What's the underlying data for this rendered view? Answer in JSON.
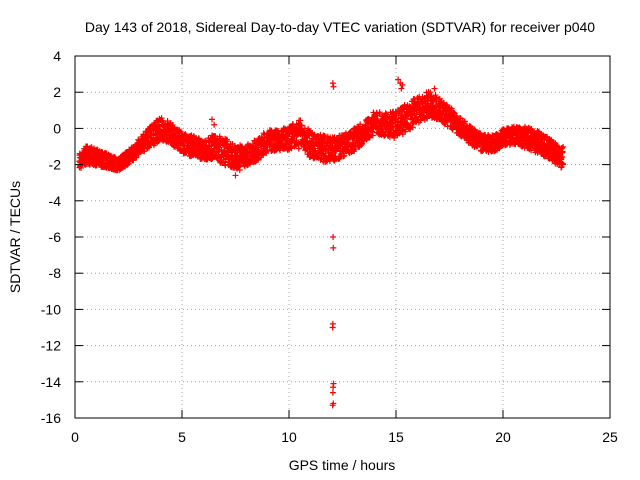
{
  "colors": {
    "series": "#ff0000",
    "axis": "#000000",
    "grid": "#a0a0a0",
    "background": "#ffffff"
  },
  "chart_data": {
    "type": "scatter",
    "title": "Day 143 of 2018, Sidereal Day-to-day VTEC variation (SDTVAR) for receiver p040",
    "xlabel": "GPS time / hours",
    "ylabel": "SDTVAR / TECUs",
    "xlim": [
      0,
      25
    ],
    "ylim": [
      -16,
      4
    ],
    "grid": true,
    "marker": "+",
    "x_ticks": [
      {
        "value": 0,
        "label": "0"
      },
      {
        "value": 5,
        "label": "5"
      },
      {
        "value": 10,
        "label": "10"
      },
      {
        "value": 15,
        "label": "15"
      },
      {
        "value": 20,
        "label": "20"
      },
      {
        "value": 25,
        "label": "25"
      }
    ],
    "y_ticks": [
      {
        "value": 4,
        "label": "4"
      },
      {
        "value": 2,
        "label": "2"
      },
      {
        "value": 0,
        "label": "0"
      },
      {
        "value": -2,
        "label": "-2"
      },
      {
        "value": -4,
        "label": "-4"
      },
      {
        "value": -6,
        "label": "-6"
      },
      {
        "value": -8,
        "label": "-8"
      },
      {
        "value": -10,
        "label": "-10"
      },
      {
        "value": -12,
        "label": "-12"
      },
      {
        "value": -14,
        "label": "-14"
      },
      {
        "value": -16,
        "label": "-16"
      }
    ],
    "series": [
      {
        "name": "SDTVAR",
        "band_center": {
          "x": [
            0.2,
            0.5,
            1.0,
            1.5,
            2.0,
            2.5,
            3.0,
            3.5,
            4.0,
            4.5,
            5.0,
            5.5,
            6.0,
            6.5,
            7.0,
            7.5,
            8.0,
            8.5,
            9.0,
            9.5,
            10.0,
            10.5,
            11.0,
            11.5,
            12.0,
            12.5,
            13.0,
            13.5,
            14.0,
            14.5,
            15.0,
            15.5,
            16.0,
            16.5,
            17.0,
            17.5,
            18.0,
            18.5,
            19.0,
            19.5,
            20.0,
            20.5,
            21.0,
            21.5,
            22.0,
            22.5,
            22.8
          ],
          "y": [
            -1.8,
            -1.5,
            -1.6,
            -1.8,
            -2.0,
            -1.6,
            -1.0,
            -0.5,
            0.0,
            -0.3,
            -0.8,
            -1.0,
            -1.2,
            -1.0,
            -1.3,
            -1.6,
            -1.5,
            -1.2,
            -0.7,
            -0.6,
            -0.6,
            -0.3,
            -0.9,
            -1.1,
            -1.2,
            -1.0,
            -0.7,
            -0.2,
            0.3,
            0.2,
            0.2,
            0.6,
            1.0,
            1.3,
            1.1,
            0.6,
            0.1,
            -0.4,
            -0.8,
            -0.9,
            -0.5,
            -0.4,
            -0.5,
            -0.7,
            -1.0,
            -1.4,
            -1.6
          ]
        },
        "band_width": [
          0.9,
          1.1,
          1.0,
          0.8,
          0.7,
          0.8,
          0.9,
          1.2,
          1.3,
          1.2,
          1.1,
          1.2,
          1.1,
          1.4,
          1.5,
          1.3,
          1.2,
          1.2,
          1.3,
          1.2,
          1.4,
          1.6,
          1.5,
          1.5,
          1.4,
          1.3,
          1.3,
          1.2,
          1.3,
          1.3,
          1.5,
          1.6,
          1.5,
          1.5,
          1.3,
          1.2,
          1.1,
          1.0,
          1.0,
          1.0,
          0.9,
          1.0,
          1.2,
          1.3,
          1.2,
          1.2,
          1.3
        ],
        "points": [
          [
            12.05,
            2.5
          ],
          [
            12.08,
            2.3
          ],
          [
            12.06,
            -6.0
          ],
          [
            12.07,
            -6.6
          ],
          [
            12.05,
            -10.8
          ],
          [
            12.04,
            -11.0
          ],
          [
            12.08,
            -14.1
          ],
          [
            12.06,
            -14.3
          ],
          [
            12.05,
            -14.6
          ],
          [
            12.07,
            -15.2
          ],
          [
            12.04,
            -15.3
          ],
          [
            15.1,
            2.7
          ],
          [
            15.2,
            2.5
          ],
          [
            15.3,
            2.4
          ],
          [
            15.25,
            2.2
          ],
          [
            6.4,
            0.5
          ],
          [
            6.5,
            0.2
          ],
          [
            7.5,
            -2.6
          ],
          [
            7.7,
            -2.3
          ],
          [
            16.8,
            2.2
          ],
          [
            16.6,
            2.0
          ]
        ]
      }
    ]
  }
}
